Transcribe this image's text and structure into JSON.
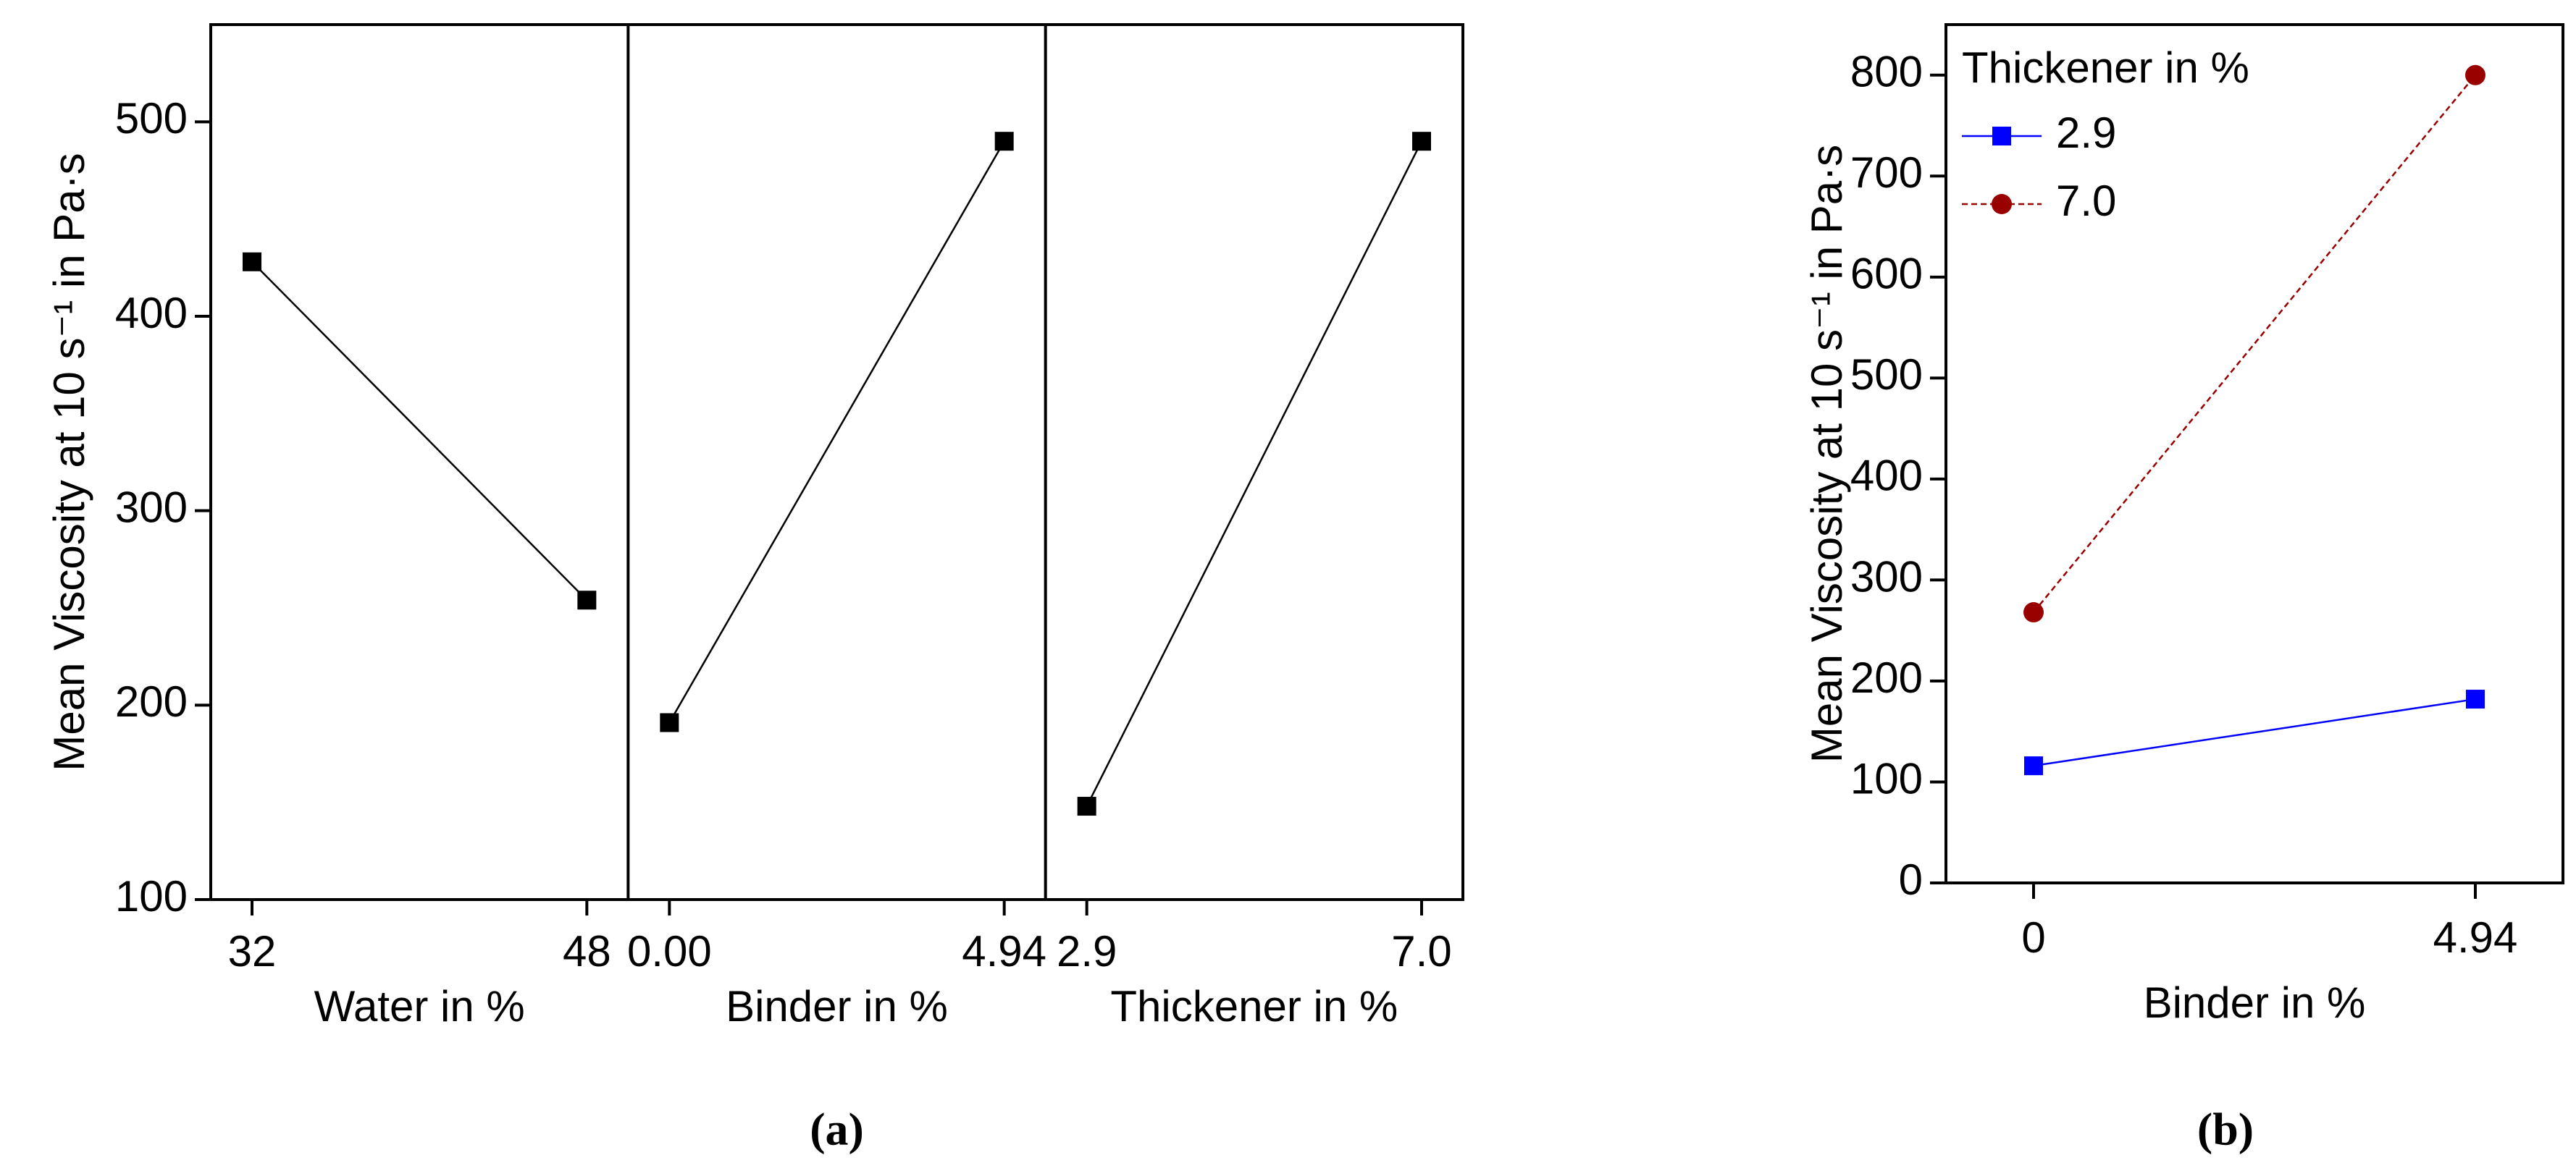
{
  "chart_data": [
    {
      "type": "panel-line",
      "caption": "(a)",
      "ylabel": "Mean Viscosity at 10 s⁻¹ in Pa·s",
      "ylim": [
        100,
        550
      ],
      "yticks": [
        100,
        200,
        300,
        400,
        500
      ],
      "color": "#000000",
      "marker": "square",
      "panels": [
        {
          "xlabel": "Water in %",
          "categories": [
            "32",
            "48"
          ],
          "values": [
            428,
            254
          ]
        },
        {
          "xlabel": "Binder in %",
          "categories": [
            "0.00",
            "4.94"
          ],
          "values": [
            191,
            490
          ]
        },
        {
          "xlabel": "Thickener in %",
          "categories": [
            "2.9",
            "7.0"
          ],
          "values": [
            148,
            490
          ]
        }
      ]
    },
    {
      "type": "line",
      "caption": "(b)",
      "ylabel": "Mean Viscosity at 10 s⁻¹ in Pa·s",
      "xlabel": "Binder in %",
      "categories": [
        "0",
        "4.94"
      ],
      "ylim": [
        0,
        850
      ],
      "yticks": [
        0,
        100,
        200,
        300,
        400,
        500,
        600,
        700,
        800
      ],
      "legend_title": "Thickener in %",
      "legend": "top-left",
      "series": [
        {
          "name": "2.9",
          "color": "#0000ff",
          "marker": "square",
          "line_style": "solid",
          "values": [
            116,
            182
          ]
        },
        {
          "name": "7.0",
          "color": "#990000",
          "marker": "circle",
          "line_style": "dashed",
          "values": [
            268,
            800
          ]
        }
      ]
    }
  ]
}
